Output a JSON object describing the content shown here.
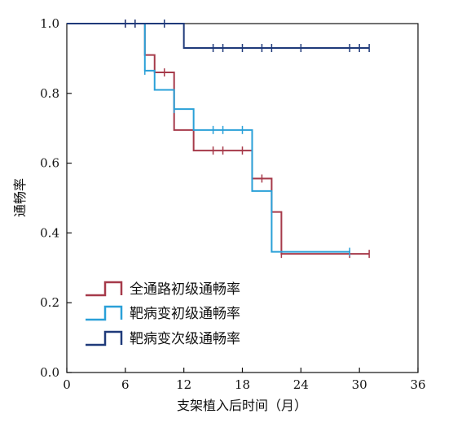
{
  "chart_data": {
    "type": "line",
    "xlabel": "支架植入后时间（月）",
    "ylabel": "通畅率",
    "xlim": [
      0,
      36
    ],
    "ylim": [
      0,
      1.0
    ],
    "x_ticks": [
      0,
      6,
      12,
      18,
      24,
      30,
      36
    ],
    "y_ticks": [
      0.0,
      0.2,
      0.4,
      0.6,
      0.8,
      1.0
    ],
    "x_tick_labels": [
      "0",
      "6",
      "12",
      "18",
      "24",
      "30",
      "36"
    ],
    "y_tick_labels": [
      "0.0",
      "0.2",
      "0.4",
      "0.6",
      "0.8",
      "1.0"
    ],
    "grid": false,
    "legend_position": "bottom-left",
    "series": [
      {
        "name": "全通路初级通畅率",
        "color": "#A63A4A",
        "steps": [
          [
            0,
            1.0
          ],
          [
            8,
            0.91
          ],
          [
            9,
            0.86
          ],
          [
            11,
            0.695
          ],
          [
            13,
            0.636
          ],
          [
            19,
            0.556
          ],
          [
            21,
            0.46
          ],
          [
            22,
            0.34
          ],
          [
            31,
            0.34
          ]
        ],
        "censored": [
          [
            6,
            1.0
          ],
          [
            7,
            1.0
          ],
          [
            10,
            0.86
          ],
          [
            15,
            0.636
          ],
          [
            16,
            0.636
          ],
          [
            18,
            0.636
          ],
          [
            20,
            0.556
          ],
          [
            22,
            0.34
          ],
          [
            29,
            0.34
          ],
          [
            31,
            0.34
          ]
        ]
      },
      {
        "name": "靶病变初级通畅率",
        "color": "#2AA0D8",
        "steps": [
          [
            0,
            1.0
          ],
          [
            8,
            0.865
          ],
          [
            9,
            0.81
          ],
          [
            11,
            0.755
          ],
          [
            13,
            0.695
          ],
          [
            19,
            0.52
          ],
          [
            21,
            0.346
          ],
          [
            29,
            0.346
          ]
        ],
        "censored": [
          [
            8,
            0.865
          ],
          [
            11,
            0.755
          ],
          [
            15,
            0.695
          ],
          [
            16,
            0.695
          ],
          [
            18,
            0.695
          ],
          [
            29,
            0.346
          ]
        ]
      },
      {
        "name": "靶病变次级通畅率",
        "color": "#1F3A7A",
        "steps": [
          [
            0,
            1.0
          ],
          [
            12,
            0.93
          ],
          [
            31,
            0.93
          ]
        ],
        "censored": [
          [
            6,
            1.0
          ],
          [
            7,
            1.0
          ],
          [
            10,
            1.0
          ],
          [
            15,
            0.93
          ],
          [
            16,
            0.93
          ],
          [
            18,
            0.93
          ],
          [
            20,
            0.93
          ],
          [
            21,
            0.93
          ],
          [
            24,
            0.93
          ],
          [
            29,
            0.93
          ],
          [
            30,
            0.93
          ],
          [
            31,
            0.93
          ]
        ]
      }
    ]
  }
}
